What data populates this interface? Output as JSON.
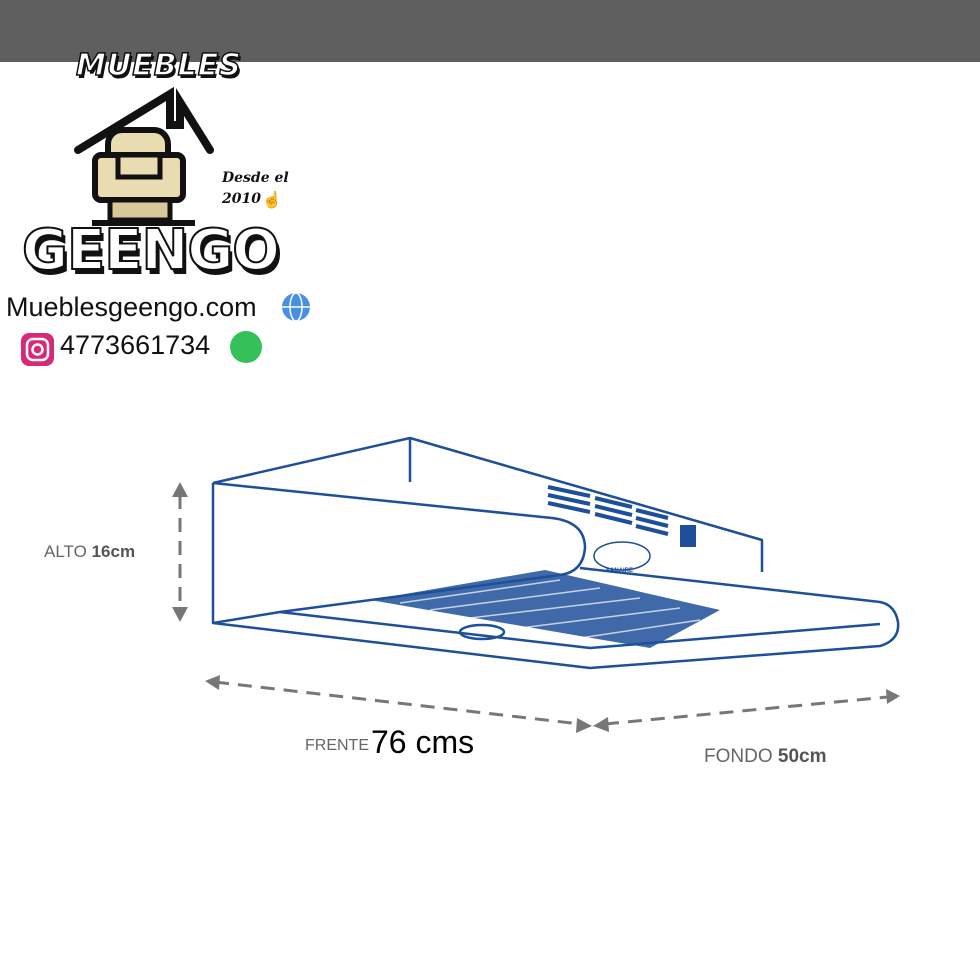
{
  "logo": {
    "brand_top": "MUEBLES",
    "brand_name": "GEENGO",
    "since": "Desde el",
    "since_year": "2010",
    "website": "Mueblesgeengo.com",
    "phone": "4773661734"
  },
  "icons": [
    "house-icon",
    "armchair-icon",
    "pointing-hand-icon",
    "globe-icon",
    "instagram-icon",
    "whatsapp-icon"
  ],
  "diagram": {
    "height_label": "ALTO",
    "height_value": "16cm",
    "width_label": "FRENTE",
    "width_value": "76 cms",
    "depth_label": "FONDO",
    "depth_value": "50cm",
    "product_brand": "SANAIRE"
  },
  "colors": {
    "outline": "#1d4f9a",
    "dimension": "#777777",
    "topbar": "#5f5f5f"
  }
}
